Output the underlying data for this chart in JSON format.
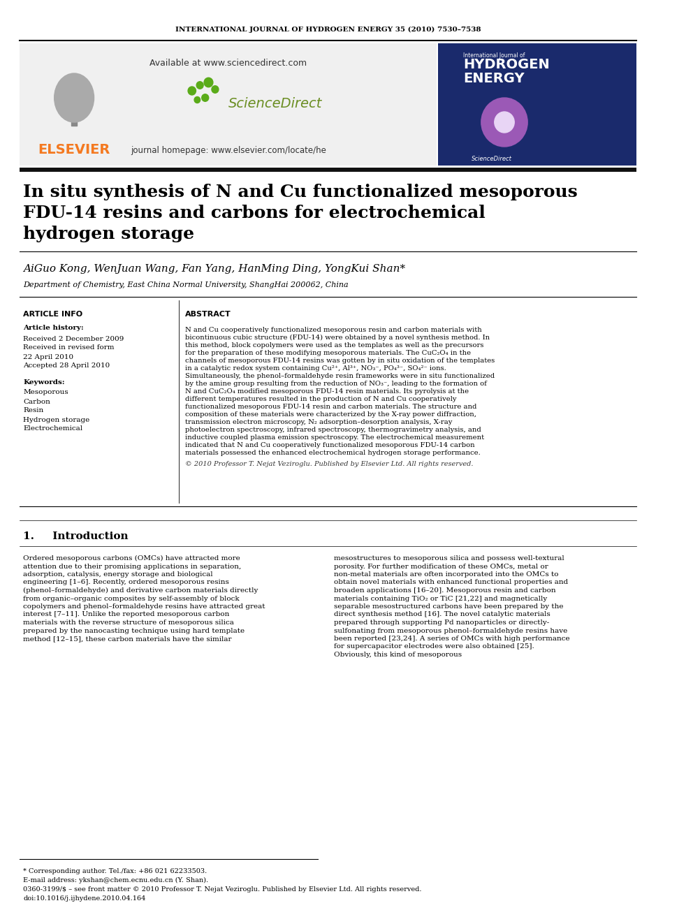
{
  "journal_header": "INTERNATIONAL JOURNAL OF HYDROGEN ENERGY 35 (2010) 7530–7538",
  "available_text": "Available at www.sciencedirect.com",
  "journal_homepage": "journal homepage: www.elsevier.com/locate/he",
  "sciencedirect_text": "ScienceDirect",
  "elsevier_text": "ELSEVIER",
  "title_line1": "In situ synthesis of N and Cu functionalized mesoporous",
  "title_line2": "FDU-14 resins and carbons for electrochemical",
  "title_line3": "hydrogen storage",
  "authors": "AiGuo Kong, WenJuan Wang, Fan Yang, HanMing Ding, YongKui Shan*",
  "affiliation": "Department of Chemistry, East China Normal University, ShangHai 200062, China",
  "article_info_title": "ARTICLE INFO",
  "abstract_title": "ABSTRACT",
  "article_history_label": "Article history:",
  "received1": "Received 2 December 2009",
  "received2": "Received in revised form",
  "date_revised": "22 April 2010",
  "accepted": "Accepted 28 April 2010",
  "keywords_label": "Keywords:",
  "keywords": [
    "Mesoporous",
    "Carbon",
    "Resin",
    "Hydrogen storage",
    "Electrochemical"
  ],
  "abstract_text": "N and Cu cooperatively functionalized mesoporous resin and carbon materials with bicontinuous cubic structure (FDU-14) were obtained by a novel synthesis method. In this method, block copolymers were used as the templates as well as the precursors for the preparation of these modifying mesoporous materials. The CuC₂O₄ in the channels of mesoporous FDU-14 resins was gotten by in situ oxidation of the templates in a catalytic redox system containing Cu²⁺, Al³⁺, NO₃⁻, PO₄³⁻, SO₄²⁻ ions. Simultaneously, the phenol–formaldehyde resin frameworks were in situ functionalized by the amine group resulting from the reduction of NO₃⁻, leading to the formation of N and CuC₂O₄ modified mesoporous FDU-14 resin materials. Its pyrolysis at the different temperatures resulted in the production of N and Cu cooperatively functionalized mesoporous FDU-14 resin and carbon materials. The structure and composition of these materials were characterized by the X-ray power diffraction, transmission electron microscopy, N₂ adsorption–desorption analysis, X-ray photoelectron spectroscopy, infrared spectroscopy, thermogravimetry analysis, and inductive coupled plasma emission spectroscopy. The electrochemical measurement indicated that N and Cu cooperatively functionalized mesoporous FDU-14 carbon materials possessed the enhanced electrochemical hydrogen storage performance.",
  "copyright_text": "© 2010 Professor T. Nejat Veziroglu. Published by Elsevier Ltd. All rights reserved.",
  "section1_title": "1.     Introduction",
  "intro_text": "Ordered mesoporous carbons (OMCs) have attracted more attention due to their promising applications in separation, adsorption, catalysis, energy storage and biological engineering [1–6]. Recently, ordered mesoporous resins (phenol–formaldehyde) and derivative carbon materials directly from organic–organic composites by self-assembly of block copolymers and phenol–formaldehyde resins have attracted great interest [7–11]. Unlike the reported mesoporous carbon materials with the reverse structure of mesoporous silica prepared by the nanocasting technique using hard template method [12–15], these carbon materials have the similar",
  "intro_text_right": "mesostructures to mesoporous silica and possess well-textural porosity. For further modification of these OMCs, metal or non-metal materials are often incorporated into the OMCs to obtain novel materials with enhanced functional properties and broaden applications [16–20]. Mesoporous resin and carbon materials containing TiO₂ or TiC [21,22] and magnetically separable mesostructured carbons have been prepared by the direct synthesis method [16]. The novel catalytic materials prepared through supporting Pd nanoparticles or directly-sulfonating from mesoporous phenol–formaldehyde resins have been reported [23,24]. A series of OMCs with high performance for supercapacitor electrodes were also obtained [25]. Obviously, this kind of mesoporous",
  "footnote_star": "* Corresponding author. Tel./fax: +86 021 62233503.",
  "footnote_email": "E-mail address: ykshan@chem.ecnu.edu.cn (Y. Shan).",
  "footnote_issn": "0360-3199/$ – see front matter © 2010 Professor T. Nejat Veziroglu. Published by Elsevier Ltd. All rights reserved.",
  "footnote_doi": "doi:10.1016/j.ijhydene.2010.04.164",
  "bg_color": "#ffffff",
  "header_bg": "#f0f0f0",
  "title_bg": "#1a1a1a",
  "elsevier_orange": "#f47920",
  "navy_blue": "#1f3864",
  "section_line_color": "#000000"
}
